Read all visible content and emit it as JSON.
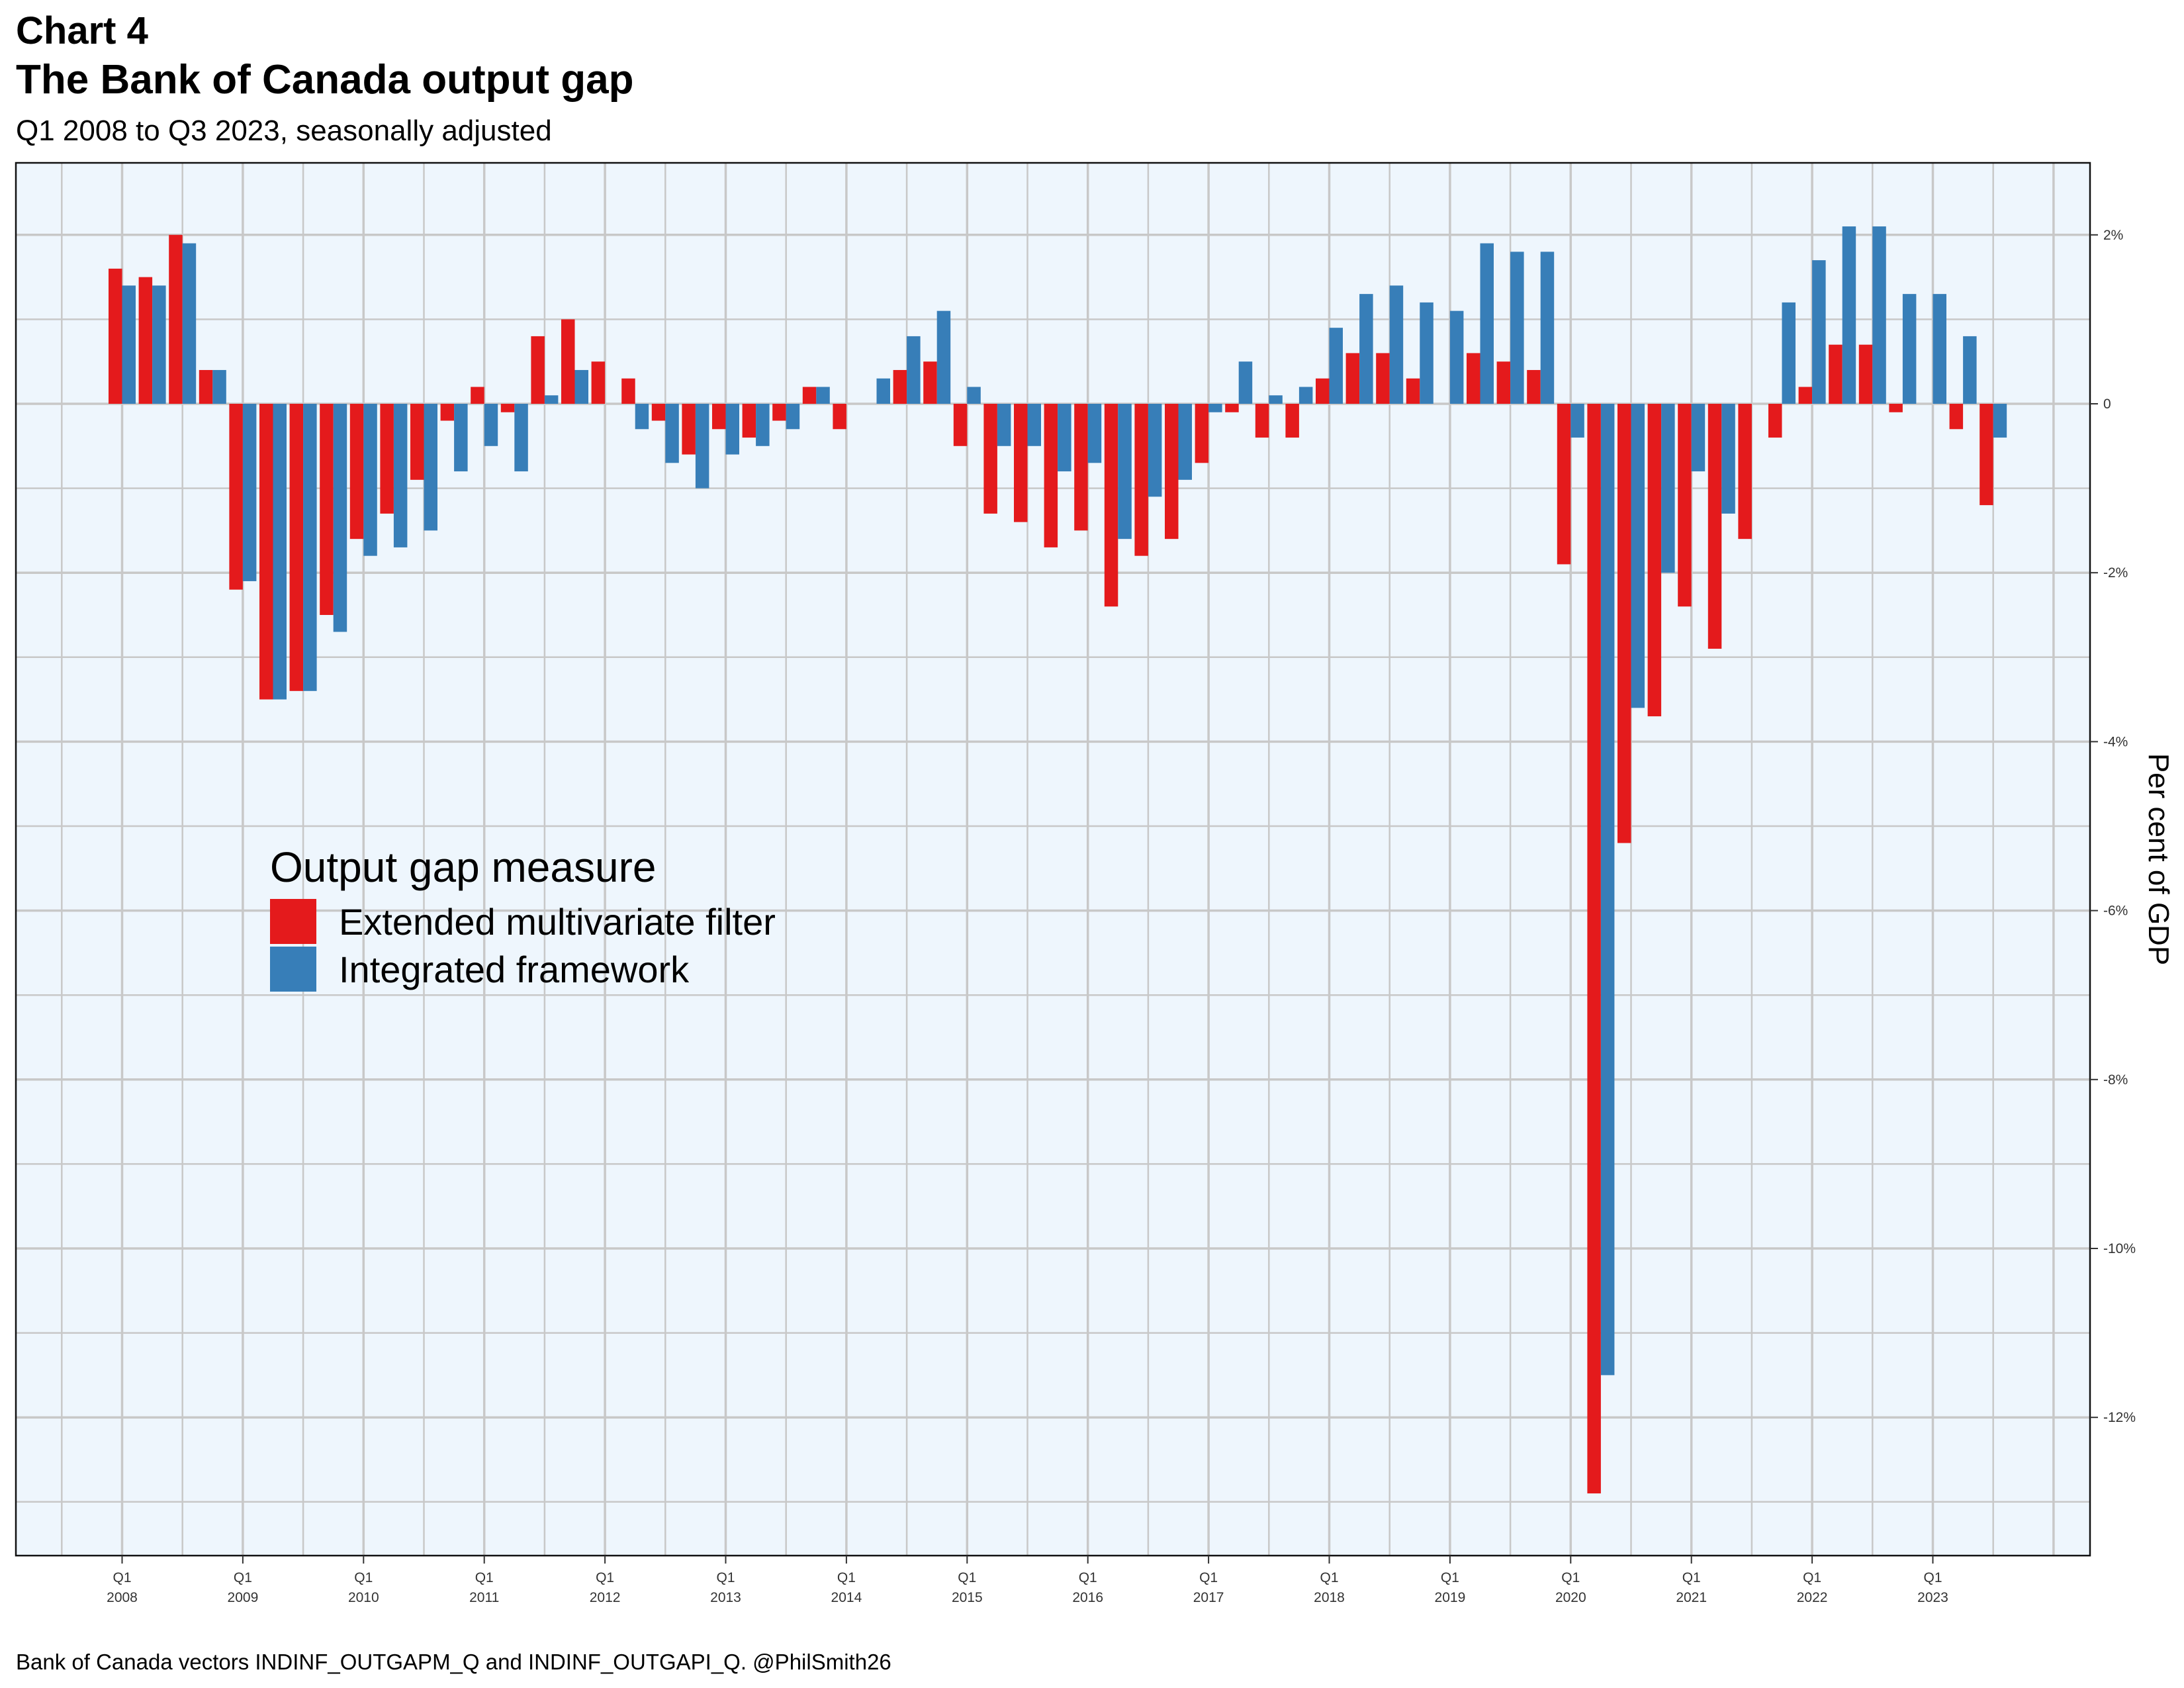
{
  "header": {
    "title_line1": "Chart 4",
    "title_line2": "The Bank of Canada output gap",
    "subtitle": "Q1 2008 to Q3 2023, seasonally adjusted"
  },
  "caption": "Bank of Canada vectors INDINF_OUTGAPM_Q and INDINF_OUTGAPI_Q. @PhilSmith26",
  "legend": {
    "title": "Output gap measure",
    "items": [
      {
        "label": "Extended multivariate filter",
        "color": "#E41A1C"
      },
      {
        "label": "Integrated framework",
        "color": "#377EB8"
      }
    ]
  },
  "chart_data": {
    "type": "bar",
    "ylabel": "Per cent of GDP",
    "ylim": [
      -13.8,
      2.8
    ],
    "y_ticks": [
      2,
      0,
      -2,
      -4,
      -6,
      -8,
      -10,
      -12
    ],
    "y_tick_labels": [
      "2%",
      "0",
      "-2%",
      "-4%",
      "-6%",
      "-8%",
      "-10%",
      "-12%"
    ],
    "y_axis_position": "right",
    "grid": true,
    "background": "#EEF6FD",
    "legend_position": "inside-left",
    "x_tick_labels": [
      {
        "q": "Q1",
        "year": "2008"
      },
      {
        "q": "Q1",
        "year": "2009"
      },
      {
        "q": "Q1",
        "year": "2010"
      },
      {
        "q": "Q1",
        "year": "2011"
      },
      {
        "q": "Q1",
        "year": "2012"
      },
      {
        "q": "Q1",
        "year": "2013"
      },
      {
        "q": "Q1",
        "year": "2014"
      },
      {
        "q": "Q1",
        "year": "2015"
      },
      {
        "q": "Q1",
        "year": "2016"
      },
      {
        "q": "Q1",
        "year": "2017"
      },
      {
        "q": "Q1",
        "year": "2018"
      },
      {
        "q": "Q1",
        "year": "2019"
      },
      {
        "q": "Q1",
        "year": "2020"
      },
      {
        "q": "Q1",
        "year": "2021"
      },
      {
        "q": "Q1",
        "year": "2022"
      },
      {
        "q": "Q1",
        "year": "2023"
      }
    ],
    "categories": [
      "2008Q1",
      "2008Q2",
      "2008Q3",
      "2008Q4",
      "2009Q1",
      "2009Q2",
      "2009Q3",
      "2009Q4",
      "2010Q1",
      "2010Q2",
      "2010Q3",
      "2010Q4",
      "2011Q1",
      "2011Q2",
      "2011Q3",
      "2011Q4",
      "2012Q1",
      "2012Q2",
      "2012Q3",
      "2012Q4",
      "2013Q1",
      "2013Q2",
      "2013Q3",
      "2013Q4",
      "2014Q1",
      "2014Q2",
      "2014Q3",
      "2014Q4",
      "2015Q1",
      "2015Q2",
      "2015Q3",
      "2015Q4",
      "2016Q1",
      "2016Q2",
      "2016Q3",
      "2016Q4",
      "2017Q1",
      "2017Q2",
      "2017Q3",
      "2017Q4",
      "2018Q1",
      "2018Q2",
      "2018Q3",
      "2018Q4",
      "2019Q1",
      "2019Q2",
      "2019Q3",
      "2019Q4",
      "2020Q1",
      "2020Q2",
      "2020Q3",
      "2020Q4",
      "2021Q1",
      "2021Q2",
      "2021Q3",
      "2021Q4",
      "2022Q1",
      "2022Q2",
      "2022Q3",
      "2022Q4",
      "2023Q1",
      "2023Q2",
      "2023Q3"
    ],
    "series": [
      {
        "name": "Extended multivariate filter",
        "color": "#E41A1C",
        "values": [
          1.6,
          1.5,
          2.0,
          0.4,
          -2.2,
          -3.5,
          -3.4,
          -2.5,
          -1.6,
          -1.3,
          -0.9,
          -0.2,
          0.2,
          -0.1,
          0.8,
          1.0,
          0.5,
          0.3,
          -0.2,
          -0.6,
          -0.3,
          -0.4,
          -0.2,
          0.2,
          -0.3,
          0.0,
          0.4,
          0.5,
          -0.5,
          -1.3,
          -1.4,
          -1.7,
          -1.5,
          -2.4,
          -1.8,
          -1.6,
          -0.7,
          -0.1,
          -0.4,
          -0.4,
          0.3,
          0.6,
          0.6,
          0.3,
          0.0,
          0.6,
          0.5,
          0.4,
          -1.9,
          -12.9,
          -5.2,
          -3.7,
          -2.4,
          -2.9,
          -1.6,
          -0.4,
          0.2,
          0.7,
          0.7,
          -0.1,
          0.0,
          -0.3,
          -1.2
        ]
      },
      {
        "name": "Integrated framework",
        "color": "#377EB8",
        "values": [
          1.4,
          1.4,
          1.9,
          0.4,
          -2.1,
          -3.5,
          -3.4,
          -2.7,
          -1.8,
          -1.7,
          -1.5,
          -0.8,
          -0.5,
          -0.8,
          0.1,
          0.4,
          0.0,
          -0.3,
          -0.7,
          -1.0,
          -0.6,
          -0.5,
          -0.3,
          0.2,
          0.0,
          0.3,
          0.8,
          1.1,
          0.2,
          -0.5,
          -0.5,
          -0.8,
          -0.7,
          -1.6,
          -1.1,
          -0.9,
          -0.1,
          0.5,
          0.1,
          0.2,
          0.9,
          1.3,
          1.4,
          1.2,
          1.1,
          1.9,
          1.8,
          1.8,
          -0.4,
          -11.5,
          -3.6,
          -2.0,
          -0.8,
          -1.3,
          0.0,
          1.2,
          1.7,
          2.1,
          2.1,
          1.3,
          1.3,
          0.8,
          -0.4
        ]
      }
    ]
  }
}
